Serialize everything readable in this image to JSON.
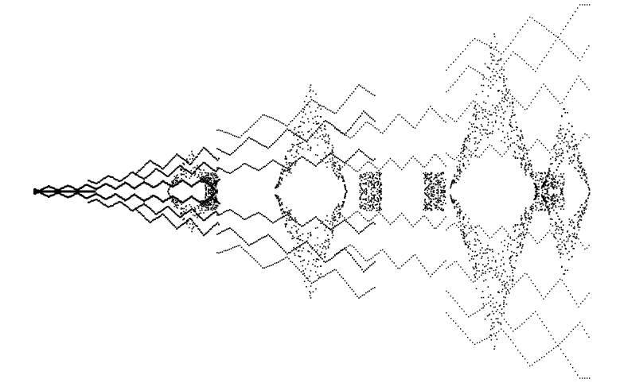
{
  "figure": {
    "description": "",
    "background": "#ffffff",
    "ink": "#000000"
  },
  "pattern": {
    "kind": "mirrored-bifurcation-fractal",
    "symmetry": "horizontal-mirror",
    "lobes": 5
  }
}
